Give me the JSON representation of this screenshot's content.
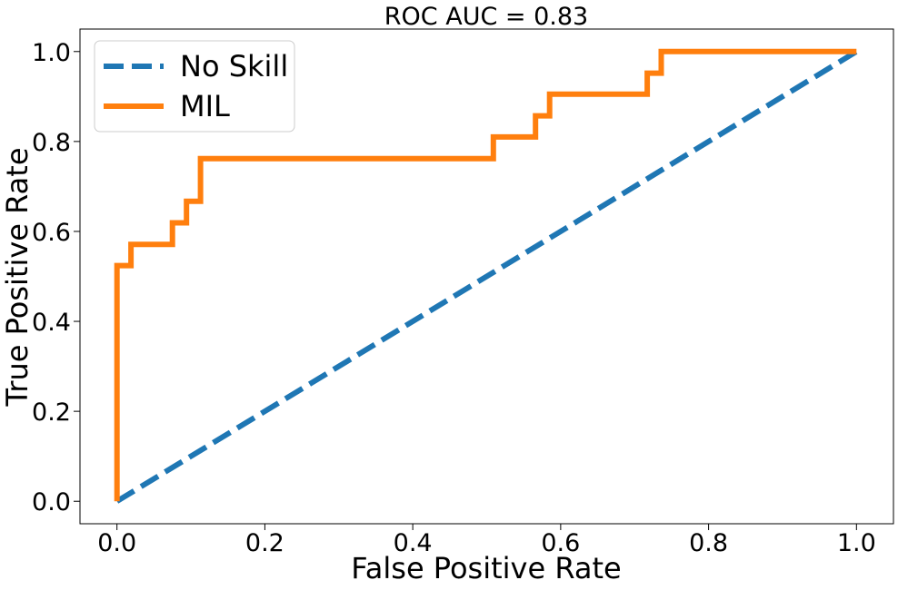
{
  "chart_data": {
    "type": "line",
    "title": "ROC AUC = 0.83",
    "xlabel": "False Positive Rate",
    "ylabel": "True Positive Rate",
    "xlim": [
      -0.05,
      1.05
    ],
    "ylim": [
      -0.05,
      1.05
    ],
    "xticks": [
      0.0,
      0.2,
      0.4,
      0.6,
      0.8,
      1.0
    ],
    "xtick_labels": [
      "0.0",
      "0.2",
      "0.4",
      "0.6",
      "0.8",
      "1.0"
    ],
    "yticks": [
      0.0,
      0.2,
      0.4,
      0.6,
      0.8,
      1.0
    ],
    "ytick_labels": [
      "0.0",
      "0.2",
      "0.4",
      "0.6",
      "0.8",
      "1.0"
    ],
    "grid": false,
    "legend_position": "top-left",
    "series": [
      {
        "name": "No Skill",
        "style": "dashed",
        "color": "#1f77b4",
        "x": [
          0,
          1
        ],
        "y": [
          0,
          1
        ]
      },
      {
        "name": "MIL",
        "style": "solid",
        "color": "#ff7f0e",
        "x": [
          0,
          0,
          0.019,
          0.019,
          0.075,
          0.075,
          0.094,
          0.094,
          0.113,
          0.113,
          0.509,
          0.509,
          0.566,
          0.566,
          0.585,
          0.585,
          0.717,
          0.717,
          0.736,
          0.736,
          1.0
        ],
        "y": [
          0,
          0.524,
          0.524,
          0.571,
          0.571,
          0.619,
          0.619,
          0.667,
          0.667,
          0.762,
          0.762,
          0.81,
          0.81,
          0.857,
          0.857,
          0.905,
          0.905,
          0.952,
          0.952,
          1.0,
          1.0
        ]
      }
    ]
  }
}
